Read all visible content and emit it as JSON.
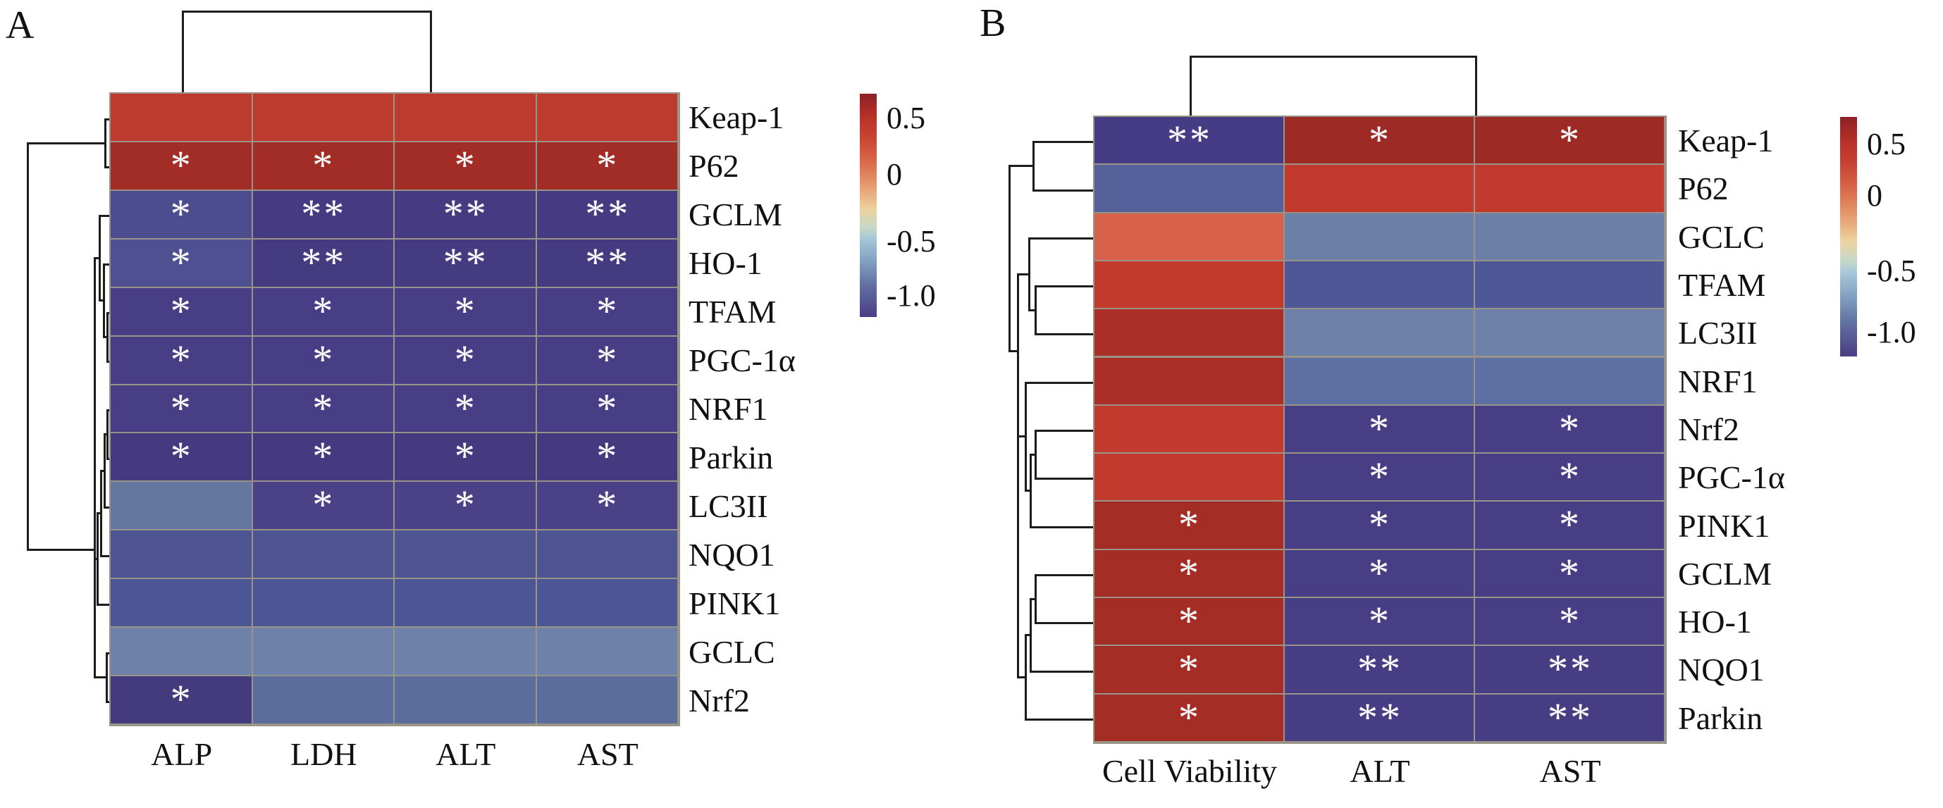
{
  "figure": {
    "description": "Two-panel clustered correlation heatmap figure",
    "panel_labels": [
      "A",
      "B"
    ],
    "significance_symbols": [
      "*",
      "**"
    ],
    "colorbar_tick_labels": [
      "0.5",
      "0",
      "-0.5",
      "-1.0"
    ],
    "colors": {
      "strong_positive_red": "#a22d26",
      "positive_red": "#bc3a2e",
      "orange_red": "#d7604a",
      "neutral_steel_blue": "#6e82a9",
      "negative_purple": "#473e85",
      "dendrogram_line": "#1c1c1c",
      "grid_line": "#9a9488",
      "mark_white": "#ffffff"
    }
  },
  "chart_data": [
    {
      "type": "heatmap",
      "panel_label": "A",
      "columns": [
        "ALP",
        "LDH",
        "ALT",
        "AST"
      ],
      "rows": [
        "Keap-1",
        "P62",
        "GCLM",
        "HO-1",
        "TFAM",
        "PGC-1α",
        "NRF1",
        "Parkin",
        "LC3II",
        "NQO1",
        "PINK1",
        "GCLC",
        "Nrf2"
      ],
      "cell_colors": [
        [
          "#bc3a2e",
          "#bc3a2e",
          "#bc3a2e",
          "#bc3a2e"
        ],
        [
          "#a22d26",
          "#a22d26",
          "#a22d26",
          "#a22d26"
        ],
        [
          "#4c4d8e",
          "#463b82",
          "#463b82",
          "#463b82"
        ],
        [
          "#4e5092",
          "#453b81",
          "#453b81",
          "#453b81"
        ],
        [
          "#473e85",
          "#473e85",
          "#473e85",
          "#473e85"
        ],
        [
          "#473e85",
          "#473e85",
          "#473e85",
          "#473e85"
        ],
        [
          "#473e85",
          "#473e85",
          "#473e85",
          "#473e85"
        ],
        [
          "#453a7f",
          "#453a7f",
          "#453a7f",
          "#453a7f"
        ],
        [
          "#64789f",
          "#4a4187",
          "#4a4187",
          "#4a4187"
        ],
        [
          "#4e5492",
          "#4e5492",
          "#4e5492",
          "#4e5492"
        ],
        [
          "#4d5694",
          "#4d5694",
          "#4d5694",
          "#4d5694"
        ],
        [
          "#6e82a9",
          "#6e82a9",
          "#6e82a9",
          "#6e82a9"
        ],
        [
          "#443a7e",
          "#5b6d9d",
          "#5b6d9d",
          "#5b6d9d"
        ]
      ],
      "significance": [
        [
          "",
          "",
          "",
          ""
        ],
        [
          "*",
          "*",
          "*",
          "*"
        ],
        [
          "*",
          "**",
          "**",
          "**"
        ],
        [
          "*",
          "**",
          "**",
          "**"
        ],
        [
          "*",
          "*",
          "*",
          "*"
        ],
        [
          "*",
          "*",
          "*",
          "*"
        ],
        [
          "*",
          "*",
          "*",
          "*"
        ],
        [
          "*",
          "*",
          "*",
          "*"
        ],
        [
          "",
          "*",
          "*",
          "*"
        ],
        [
          "",
          "",
          "",
          ""
        ],
        [
          "",
          "",
          "",
          ""
        ],
        [
          "",
          "",
          "",
          ""
        ],
        [
          "*",
          "",
          "",
          ""
        ]
      ],
      "values_est": [
        [
          0.55,
          0.55,
          0.55,
          0.55
        ],
        [
          0.7,
          0.7,
          0.7,
          0.7
        ],
        [
          -0.95,
          -1.05,
          -1.05,
          -1.05
        ],
        [
          -0.93,
          -1.05,
          -1.05,
          -1.05
        ],
        [
          -1.02,
          -1.02,
          -1.02,
          -1.02
        ],
        [
          -1.02,
          -1.02,
          -1.02,
          -1.02
        ],
        [
          -1.02,
          -1.02,
          -1.02,
          -1.02
        ],
        [
          -1.05,
          -1.05,
          -1.05,
          -1.05
        ],
        [
          -0.72,
          -1.0,
          -1.0,
          -1.0
        ],
        [
          -0.92,
          -0.92,
          -0.92,
          -0.92
        ],
        [
          -0.92,
          -0.92,
          -0.92,
          -0.92
        ],
        [
          -0.65,
          -0.65,
          -0.65,
          -0.65
        ],
        [
          -1.05,
          -0.78,
          -0.78,
          -0.78
        ]
      ],
      "colorbar": {
        "ticks": [
          "0.5",
          "0",
          "-0.5",
          "-1.0"
        ],
        "value_range_est": [
          0.7,
          -1.15
        ],
        "gradient": [
          [
            "#8e2023",
            0
          ],
          [
            "#b93229",
            11
          ],
          [
            "#c84433",
            20
          ],
          [
            "#d96749",
            30
          ],
          [
            "#e59a6c",
            41
          ],
          [
            "#ecd3a0",
            52
          ],
          [
            "#c6d8c8",
            60
          ],
          [
            "#a5c8d9",
            65
          ],
          [
            "#7e9cbf",
            76
          ],
          [
            "#60709f",
            86
          ],
          [
            "#4a3d86",
            100
          ]
        ]
      },
      "col_dendrogram": [
        [
          258,
          15,
          610,
          15
        ],
        [
          258,
          15,
          258,
          133
        ],
        [
          610,
          15,
          610,
          133
        ]
      ],
      "row_dendrogram": [
        [
          148,
          167.5,
          148,
          236.4
        ],
        [
          148,
          167.5,
          157,
          167.5
        ],
        [
          148,
          236.4,
          157,
          236.4
        ],
        [
          38,
          202,
          148,
          202
        ],
        [
          38,
          202,
          38,
          779
        ],
        [
          38,
          779,
          133,
          779
        ],
        [
          133,
          365,
          133,
          960
        ],
        [
          151,
          443,
          151,
          512
        ],
        [
          151,
          443,
          157,
          443
        ],
        [
          151,
          512,
          157,
          512
        ],
        [
          146,
          374,
          146,
          477
        ],
        [
          146,
          374,
          157,
          374
        ],
        [
          146,
          477,
          151,
          477
        ],
        [
          140,
          305,
          140,
          425
        ],
        [
          140,
          305,
          157,
          305
        ],
        [
          140,
          425,
          146,
          425
        ],
        [
          133,
          365,
          140,
          365
        ],
        [
          151,
          581,
          151,
          650
        ],
        [
          151,
          581,
          157,
          581
        ],
        [
          151,
          650,
          157,
          650
        ],
        [
          147,
          615,
          147,
          719
        ],
        [
          147,
          615,
          151,
          615
        ],
        [
          147,
          719,
          157,
          719
        ],
        [
          142,
          667,
          142,
          788
        ],
        [
          142,
          667,
          147,
          667
        ],
        [
          142,
          788,
          157,
          788
        ],
        [
          137,
          727,
          137,
          857
        ],
        [
          137,
          727,
          142,
          727
        ],
        [
          137,
          857,
          157,
          857
        ],
        [
          133,
          792,
          137,
          792
        ],
        [
          150,
          925.5,
          150,
          994.5
        ],
        [
          150,
          925.5,
          157,
          925.5
        ],
        [
          150,
          994.5,
          157,
          994.5
        ],
        [
          133,
          960,
          150,
          960
        ]
      ]
    },
    {
      "type": "heatmap",
      "panel_label": "B",
      "columns": [
        "Cell Viability",
        "ALT",
        "AST"
      ],
      "rows": [
        "Keap-1",
        "P62",
        "GCLC",
        "TFAM",
        "LC3II",
        "NRF1",
        "Nrf2",
        "PGC-1α",
        "PINK1",
        "GCLM",
        "HO-1",
        "NQO1",
        "Parkin"
      ],
      "cell_colors": [
        [
          "#463c85",
          "#9d2a25",
          "#9d2a25"
        ],
        [
          "#55619a",
          "#c23a2d",
          "#c23a2d"
        ],
        [
          "#d7604a",
          "#6c80a7",
          "#6c80a7"
        ],
        [
          "#c33a2d",
          "#4e5897",
          "#4e5897"
        ],
        [
          "#a92f27",
          "#6e82a9",
          "#6e82a9"
        ],
        [
          "#a92f27",
          "#5e70a1",
          "#5e70a1"
        ],
        [
          "#c23a2d",
          "#483e86",
          "#483e86"
        ],
        [
          "#c23a2d",
          "#483e86",
          "#483e86"
        ],
        [
          "#a42d26",
          "#483e86",
          "#483e86"
        ],
        [
          "#a42d26",
          "#483e86",
          "#483e86"
        ],
        [
          "#a42d26",
          "#483e86",
          "#483e86"
        ],
        [
          "#a42d26",
          "#473d84",
          "#473d84"
        ],
        [
          "#a42d26",
          "#473d84",
          "#473d84"
        ]
      ],
      "significance": [
        [
          "**",
          "*",
          "*"
        ],
        [
          "",
          "",
          ""
        ],
        [
          "",
          "",
          ""
        ],
        [
          "",
          "",
          ""
        ],
        [
          "",
          "",
          ""
        ],
        [
          "",
          "",
          ""
        ],
        [
          "",
          "*",
          "*"
        ],
        [
          "",
          "*",
          "*"
        ],
        [
          "*",
          "*",
          "*"
        ],
        [
          "*",
          "*",
          "*"
        ],
        [
          "*",
          "*",
          "*"
        ],
        [
          "*",
          "**",
          "**"
        ],
        [
          "*",
          "**",
          "**"
        ]
      ],
      "values_est": [
        [
          -1.03,
          0.7,
          0.7
        ],
        [
          -0.82,
          0.5,
          0.5
        ],
        [
          0.3,
          -0.66,
          -0.66
        ],
        [
          0.5,
          -0.9,
          -0.9
        ],
        [
          0.65,
          -0.66,
          -0.66
        ],
        [
          0.65,
          -0.76,
          -0.76
        ],
        [
          0.5,
          -1.02,
          -1.02
        ],
        [
          0.5,
          -1.02,
          -1.02
        ],
        [
          0.68,
          -1.02,
          -1.02
        ],
        [
          0.68,
          -1.02,
          -1.02
        ],
        [
          0.68,
          -1.02,
          -1.02
        ],
        [
          0.68,
          -1.05,
          -1.05
        ],
        [
          0.68,
          -1.05,
          -1.05
        ]
      ],
      "colorbar": {
        "ticks": [
          "0.5",
          "0",
          "-0.5",
          "-1.0"
        ],
        "value_range_est": [
          0.7,
          -1.15
        ],
        "gradient": [
          [
            "#8e2023",
            0
          ],
          [
            "#b93229",
            11
          ],
          [
            "#c84433",
            20
          ],
          [
            "#d96749",
            30
          ],
          [
            "#e59a6c",
            41
          ],
          [
            "#ecd3a0",
            52
          ],
          [
            "#c6d8c8",
            60
          ],
          [
            "#a5c8d9",
            65
          ],
          [
            "#7e9cbf",
            76
          ],
          [
            "#60709f",
            86
          ],
          [
            "#4a3d86",
            100
          ]
        ]
      },
      "col_dendrogram": [
        [
          1688,
          79,
          2093,
          79
        ],
        [
          1688,
          79,
          1688,
          166
        ],
        [
          2093,
          79,
          2093,
          166
        ]
      ],
      "row_dendrogram": [
        [
          1465,
          200,
          1465,
          268.5
        ],
        [
          1465,
          200,
          1553,
          200
        ],
        [
          1465,
          268.5,
          1553,
          268.5
        ],
        [
          1431,
          234,
          1465,
          234
        ],
        [
          1431,
          234,
          1431,
          497
        ],
        [
          1431,
          497,
          1443,
          497
        ],
        [
          1443,
          388,
          1443,
          960
        ],
        [
          1468,
          405,
          1468,
          473
        ],
        [
          1468,
          405,
          1553,
          405
        ],
        [
          1468,
          473,
          1553,
          473
        ],
        [
          1459,
          337,
          1459,
          439
        ],
        [
          1459,
          337,
          1553,
          337
        ],
        [
          1459,
          439,
          1468,
          439
        ],
        [
          1443,
          388,
          1459,
          388
        ],
        [
          1468,
          610,
          1468,
          678
        ],
        [
          1468,
          610,
          1553,
          610
        ],
        [
          1468,
          678,
          1553,
          678
        ],
        [
          1461,
          644,
          1461,
          747
        ],
        [
          1461,
          644,
          1468,
          644
        ],
        [
          1461,
          747,
          1553,
          747
        ],
        [
          1454,
          542,
          1454,
          695
        ],
        [
          1454,
          542,
          1553,
          542
        ],
        [
          1454,
          695,
          1461,
          695
        ],
        [
          1443,
          618,
          1454,
          618
        ],
        [
          1468,
          815,
          1468,
          883
        ],
        [
          1468,
          815,
          1553,
          815
        ],
        [
          1468,
          883,
          1553,
          883
        ],
        [
          1461,
          849,
          1461,
          951.5
        ],
        [
          1461,
          849,
          1468,
          849
        ],
        [
          1461,
          951.5,
          1553,
          951.5
        ],
        [
          1454,
          900,
          1454,
          1020
        ],
        [
          1454,
          900,
          1461,
          900
        ],
        [
          1454,
          1020,
          1553,
          1020
        ],
        [
          1443,
          960,
          1454,
          960
        ]
      ]
    }
  ]
}
